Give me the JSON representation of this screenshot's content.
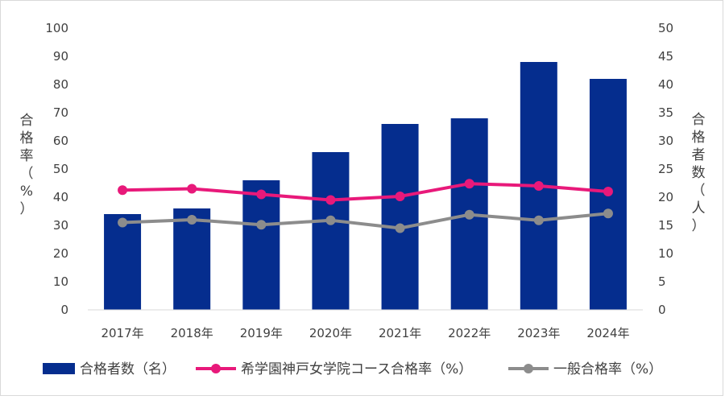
{
  "chart_data": {
    "type": "bar+line",
    "categories": [
      "2017年",
      "2018年",
      "2019年",
      "2020年",
      "2021年",
      "2022年",
      "2023年",
      "2024年"
    ],
    "left_axis": {
      "label": "合格率（%）",
      "range": [
        0,
        100
      ],
      "step": 10,
      "ticks": [
        "0",
        "10",
        "20",
        "30",
        "40",
        "50",
        "60",
        "70",
        "80",
        "90",
        "100"
      ]
    },
    "right_axis": {
      "label": "合格者数（人）",
      "range": [
        0,
        50
      ],
      "step": 5,
      "ticks": [
        "0",
        "5",
        "10",
        "15",
        "20",
        "25",
        "30",
        "35",
        "40",
        "45",
        "50"
      ]
    },
    "series": [
      {
        "name": "合格者数（名）",
        "kind": "bar",
        "axis": "right",
        "color": "#052d8e",
        "values": [
          17,
          18,
          23,
          28,
          33,
          34,
          44,
          41
        ]
      },
      {
        "name": "希学園神戸女学院コース合格率（%）",
        "kind": "line",
        "axis": "left",
        "color": "#e8197a",
        "values": [
          42.5,
          43,
          41,
          39,
          40.3,
          44.8,
          44,
          42
        ]
      },
      {
        "name": "一般合格率（%）",
        "kind": "line",
        "axis": "left",
        "color": "#8c8c8c",
        "values": [
          31,
          32,
          30.2,
          31.8,
          29,
          33.8,
          31.8,
          34.2
        ]
      }
    ],
    "grid": false,
    "legend_position": "bottom"
  }
}
